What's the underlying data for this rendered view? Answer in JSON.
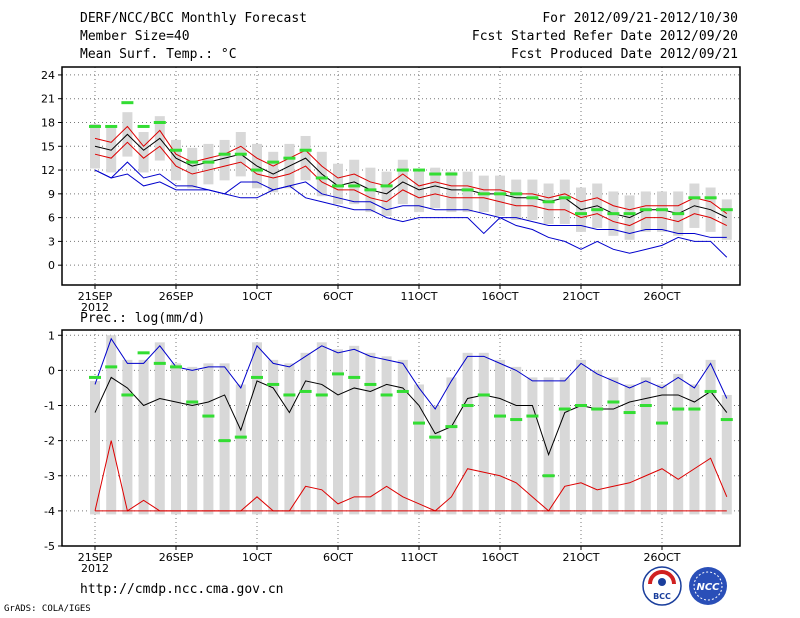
{
  "header": {
    "title": "DERF/NCC/BCC Monthly Forecast",
    "member_size": "Member Size=40",
    "variable": "Mean Surf. Temp.: °C",
    "period": "For 2012/09/21-2012/10/30",
    "started": "Fcst Started Refer Date 2012/09/20",
    "produced": "Fcst Produced Date 2012/09/21"
  },
  "footer": {
    "url": "http://cmdp.ncc.cma.gov.cn",
    "grads": "GrADS: COLA/IGES",
    "logo_left": "BCC",
    "logo_right": "NCC"
  },
  "colors": {
    "envelope": "#0000cc",
    "spread": "#dd0000",
    "mean": "#000000",
    "obs": "#33dd33",
    "box": "#d8d8d8"
  },
  "chart_data": [
    {
      "type": "line",
      "title": "Mean Surf. Temp.: °C",
      "ylim": [
        -2.5,
        25
      ],
      "yticks": [
        0,
        3,
        6,
        9,
        12,
        15,
        18,
        21,
        24
      ],
      "xticks": [
        {
          "i": 0,
          "label": "21SEP",
          "sub": "2012"
        },
        {
          "i": 5,
          "label": "26SEP"
        },
        {
          "i": 10,
          "label": "1OCT"
        },
        {
          "i": 15,
          "label": "6OCT"
        },
        {
          "i": 20,
          "label": "11OCT"
        },
        {
          "i": 25,
          "label": "16OCT"
        },
        {
          "i": 30,
          "label": "21OCT"
        },
        {
          "i": 35,
          "label": "26OCT"
        }
      ],
      "series": [
        {
          "name": "max",
          "values": [
            12.0,
            11.0,
            11.5,
            10.0,
            10.5,
            9.5,
            9.5,
            9.5,
            9.0,
            10.5,
            10.5,
            9.5,
            10.0,
            10.5,
            9.0,
            8.5,
            8.0,
            8.0,
            7.0,
            7.5,
            7.5,
            7.0,
            7.0,
            7.0,
            6.5,
            6.0,
            6.0,
            5.5,
            5.0,
            5.0,
            5.0,
            4.5,
            4.5,
            4.0,
            4.5,
            4.5,
            4.0,
            4.0,
            3.5,
            3.5
          ]
        },
        {
          "name": "p_high",
          "values": [
            16,
            15.5,
            17.5,
            15,
            17,
            14,
            13,
            13.5,
            14,
            15,
            13.5,
            12.5,
            13.5,
            14.5,
            12.5,
            11,
            11.5,
            10.5,
            10,
            11.5,
            10,
            10.5,
            10,
            10,
            9.5,
            9.5,
            9,
            9,
            8.5,
            9,
            8,
            8.5,
            7.5,
            7,
            7.5,
            7.5,
            7.5,
            8.5,
            8,
            6.5
          ]
        },
        {
          "name": "mean",
          "values": [
            15,
            14.5,
            16.5,
            14.5,
            16,
            13.5,
            12.5,
            13,
            13.5,
            14,
            12.5,
            11.5,
            12.5,
            13.5,
            11.5,
            10,
            10.5,
            9.5,
            9,
            10.5,
            9.5,
            10,
            9.5,
            9.5,
            9,
            9,
            8.5,
            8.5,
            8,
            8.5,
            7,
            7.5,
            6.5,
            6,
            7,
            7,
            6.5,
            7.5,
            7,
            6
          ]
        },
        {
          "name": "p_low",
          "values": [
            14,
            13.5,
            15.5,
            13.5,
            15,
            12.5,
            11.5,
            12,
            12.5,
            13,
            11.5,
            11,
            11.5,
            12.5,
            10.5,
            9.5,
            9.5,
            8.5,
            8,
            9.5,
            8.5,
            9,
            8.5,
            8.5,
            8.5,
            8,
            7.5,
            7.5,
            7,
            7,
            6,
            6.5,
            5.5,
            5,
            6,
            6,
            5.5,
            6.5,
            6,
            5
          ]
        },
        {
          "name": "min",
          "values": [
            12,
            11,
            13,
            11,
            11.5,
            10,
            10,
            9.5,
            9,
            8.5,
            8.5,
            9.5,
            10,
            8.5,
            8,
            7.5,
            7,
            7,
            6,
            5.5,
            6,
            6,
            6,
            6,
            4,
            6,
            5,
            4.5,
            3.5,
            3,
            2,
            3,
            2,
            1.5,
            2,
            2.5,
            3.5,
            3,
            3,
            1
          ]
        },
        {
          "name": "obs",
          "values": [
            17.5,
            17.5,
            20.5,
            17.5,
            18,
            14.5,
            13,
            13,
            14,
            14,
            12,
            13,
            13.5,
            14.5,
            11,
            10,
            10,
            9.5,
            10,
            12,
            12,
            11.5,
            11.5,
            9.5,
            9,
            9,
            9,
            8.5,
            8,
            8.5,
            6.5,
            7,
            6.5,
            6.5,
            7,
            7,
            6.5,
            8.5,
            8.5,
            7
          ]
        }
      ]
    },
    {
      "type": "line",
      "title": "Prec.: log(mm/d)",
      "ylim": [
        -5,
        1.15
      ],
      "yticks": [
        -5,
        -4,
        -3,
        -2,
        -1,
        0,
        1
      ],
      "xticks": [
        {
          "i": 0,
          "label": "21SEP",
          "sub": "2012"
        },
        {
          "i": 5,
          "label": "26SEP"
        },
        {
          "i": 10,
          "label": "1OCT"
        },
        {
          "i": 15,
          "label": "6OCT"
        },
        {
          "i": 20,
          "label": "11OCT"
        },
        {
          "i": 25,
          "label": "16OCT"
        },
        {
          "i": 30,
          "label": "21OCT"
        },
        {
          "i": 35,
          "label": "26OCT"
        }
      ],
      "series": [
        {
          "name": "max",
          "values": [
            -0.4,
            0.9,
            0.2,
            0.2,
            0.7,
            0.1,
            0.0,
            0.1,
            0.1,
            -0.5,
            0.7,
            0.2,
            0.1,
            0.4,
            0.7,
            0.5,
            0.6,
            0.4,
            0.3,
            0.2,
            -0.5,
            -1.1,
            -0.3,
            0.4,
            0.4,
            0.2,
            0.0,
            -0.3,
            -0.3,
            -0.3,
            0.2,
            -0.1,
            -0.3,
            -0.5,
            -0.3,
            -0.5,
            -0.2,
            -0.5,
            0.2,
            -0.8
          ]
        },
        {
          "name": "mean",
          "values": [
            -1.2,
            -0.2,
            -0.5,
            -1.0,
            -0.8,
            -0.9,
            -1.0,
            -0.9,
            -0.7,
            -1.7,
            -0.3,
            -0.5,
            -1.2,
            -0.3,
            -0.4,
            -0.7,
            -0.5,
            -0.6,
            -0.4,
            -0.5,
            -1.0,
            -1.8,
            -1.6,
            -0.8,
            -0.7,
            -0.8,
            -1.0,
            -1.0,
            -2.4,
            -1.2,
            -1.0,
            -1.1,
            -1.1,
            -0.9,
            -0.8,
            -0.7,
            -0.7,
            -0.9,
            -0.6,
            -1.2
          ]
        },
        {
          "name": "min",
          "values": [
            -4.0,
            -2.0,
            -4.0,
            -3.7,
            -4.0,
            -4.0,
            -4.0,
            -4.0,
            -4.0,
            -4.0,
            -3.6,
            -4.0,
            -4.0,
            -3.3,
            -3.4,
            -3.8,
            -3.6,
            -3.6,
            -3.3,
            -3.6,
            -3.8,
            -4.0,
            -3.6,
            -2.8,
            -2.9,
            -3.0,
            -3.2,
            -3.6,
            -4.0,
            -3.3,
            -3.2,
            -3.4,
            -3.3,
            -3.2,
            -3.0,
            -2.8,
            -3.1,
            -2.8,
            -2.5,
            -3.6
          ]
        },
        {
          "name": "floor",
          "values": [
            -4,
            -4,
            -4,
            -4,
            -4,
            -4,
            -4,
            -4,
            -4,
            -4,
            -4,
            -4,
            -4,
            -4,
            -4,
            -4,
            -4,
            -4,
            -4,
            -4,
            -4,
            -4,
            -4,
            -4,
            -4,
            -4,
            -4,
            -4,
            -4,
            -4,
            -4,
            -4,
            -4,
            -4,
            -4,
            -4,
            -4,
            -4,
            -4,
            -4
          ]
        },
        {
          "name": "obs",
          "values": [
            -0.2,
            0.1,
            -0.7,
            0.5,
            0.2,
            0.1,
            -0.9,
            -1.3,
            -2.0,
            -1.9,
            -0.2,
            -0.4,
            -0.7,
            -0.6,
            -0.7,
            -0.1,
            -0.2,
            -0.4,
            -0.7,
            -0.6,
            -1.5,
            -1.9,
            -1.6,
            -1.0,
            -0.7,
            -1.3,
            -1.4,
            -1.3,
            -3.0,
            -1.1,
            -1.0,
            -1.1,
            -0.9,
            -1.2,
            -1.0,
            -1.5,
            -1.1,
            -1.1,
            -0.6,
            -1.4
          ]
        }
      ]
    }
  ]
}
